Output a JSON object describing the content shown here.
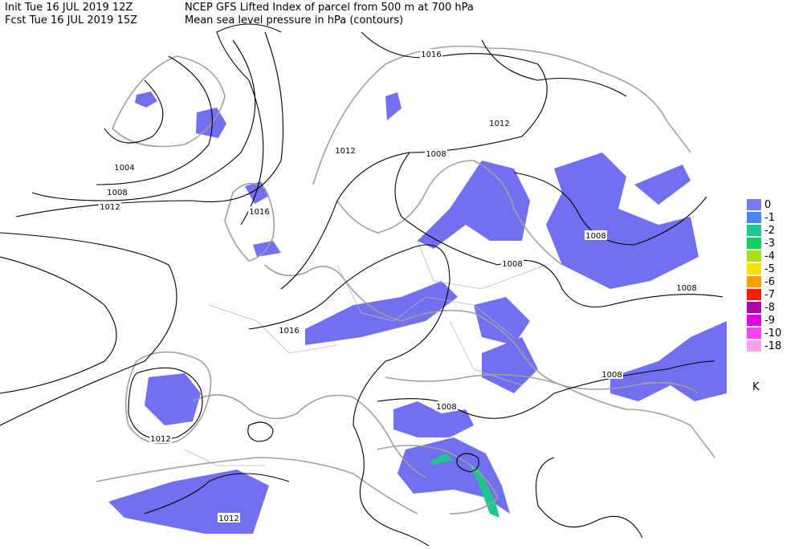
{
  "header": {
    "init": "Init  Tue 16 JUL 2019 12Z",
    "fcst": "Fcst Tue 16 JUL 2019 15Z",
    "title": "NCEP GFS Lifted Index of parcel from 500 m at 700 hPa",
    "subtitle": "Mean sea level pressure in hPa (contours)"
  },
  "contour_labels": [
    1016,
    1012,
    1012,
    1008,
    1004,
    1008,
    1012,
    1016,
    1008,
    1008,
    1008,
    1016,
    1008,
    1008,
    1012,
    1012
  ],
  "legend": {
    "items": [
      {
        "label": 0,
        "color": "#7878f0"
      },
      {
        "label": -1,
        "color": "#4a88f0"
      },
      {
        "label": -2,
        "color": "#1ec88c"
      },
      {
        "label": -3,
        "color": "#10d060"
      },
      {
        "label": -4,
        "color": "#a8e020"
      },
      {
        "label": -5,
        "color": "#f8e000"
      },
      {
        "label": -6,
        "color": "#ff9c00"
      },
      {
        "label": -7,
        "color": "#ff1c00"
      },
      {
        "label": -8,
        "color": "#b000b0"
      },
      {
        "label": -9,
        "color": "#e000e0"
      },
      {
        "label": -10,
        "color": "#ff40ff"
      },
      {
        "label": -18,
        "color": "#ffa0f0"
      }
    ],
    "unit": "K"
  }
}
